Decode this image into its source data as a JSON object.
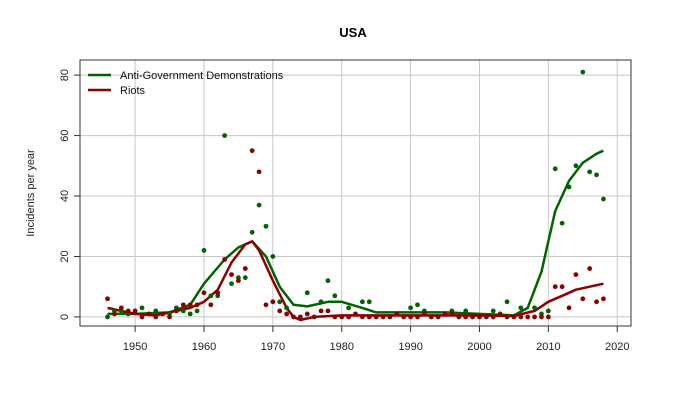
{
  "chart_data": {
    "type": "scatter",
    "title": "USA",
    "xlabel": "",
    "ylabel": "Incidents per year",
    "xlim": [
      1942,
      2022
    ],
    "ylim": [
      -3,
      85
    ],
    "x_ticks": [
      1950,
      1960,
      1970,
      1980,
      1990,
      2000,
      2010,
      2020
    ],
    "y_ticks": [
      0,
      20,
      40,
      60,
      80
    ],
    "grid": true,
    "legend_position": "top-left",
    "series": [
      {
        "name": "Anti-Government Demonstrations",
        "color": "#006400",
        "points": [
          [
            1946,
            0
          ],
          [
            1947,
            2
          ],
          [
            1948,
            2
          ],
          [
            1949,
            1
          ],
          [
            1951,
            3
          ],
          [
            1953,
            2
          ],
          [
            1955,
            1
          ],
          [
            1956,
            3
          ],
          [
            1957,
            2
          ],
          [
            1958,
            1
          ],
          [
            1959,
            2
          ],
          [
            1960,
            22
          ],
          [
            1961,
            7
          ],
          [
            1962,
            7
          ],
          [
            1963,
            60
          ],
          [
            1964,
            11
          ],
          [
            1965,
            13
          ],
          [
            1966,
            13
          ],
          [
            1967,
            28
          ],
          [
            1968,
            37
          ],
          [
            1969,
            30
          ],
          [
            1970,
            20
          ],
          [
            1971,
            5
          ],
          [
            1972,
            3
          ],
          [
            1975,
            8
          ],
          [
            1977,
            5
          ],
          [
            1978,
            12
          ],
          [
            1979,
            7
          ],
          [
            1981,
            3
          ],
          [
            1983,
            5
          ],
          [
            1984,
            5
          ],
          [
            1990,
            3
          ],
          [
            1991,
            4
          ],
          [
            1992,
            2
          ],
          [
            1996,
            2
          ],
          [
            1998,
            2
          ],
          [
            2002,
            2
          ],
          [
            2004,
            5
          ],
          [
            2006,
            3
          ],
          [
            2008,
            3
          ],
          [
            2009,
            1
          ],
          [
            2010,
            2
          ],
          [
            2011,
            49
          ],
          [
            2012,
            31
          ],
          [
            2013,
            43
          ],
          [
            2014,
            50
          ],
          [
            2015,
            81
          ],
          [
            2016,
            48
          ],
          [
            2017,
            47
          ],
          [
            2018,
            39
          ]
        ],
        "trend": [
          [
            1946,
            1
          ],
          [
            1950,
            1
          ],
          [
            1955,
            1.5
          ],
          [
            1958,
            4
          ],
          [
            1960,
            11
          ],
          [
            1963,
            19
          ],
          [
            1965,
            23
          ],
          [
            1967,
            25
          ],
          [
            1969,
            20
          ],
          [
            1971,
            10
          ],
          [
            1973,
            4
          ],
          [
            1975,
            3.5
          ],
          [
            1978,
            5
          ],
          [
            1980,
            5
          ],
          [
            1983,
            3
          ],
          [
            1985,
            1.5
          ],
          [
            1990,
            1.5
          ],
          [
            1995,
            1.5
          ],
          [
            2000,
            1
          ],
          [
            2005,
            0.5
          ],
          [
            2007,
            3
          ],
          [
            2009,
            15
          ],
          [
            2011,
            35
          ],
          [
            2013,
            45
          ],
          [
            2015,
            51
          ],
          [
            2017,
            54
          ],
          [
            2018,
            55
          ]
        ]
      },
      {
        "name": "Riots",
        "color": "#8b0000",
        "points": [
          [
            1946,
            6
          ],
          [
            1947,
            1
          ],
          [
            1948,
            3
          ],
          [
            1949,
            2
          ],
          [
            1950,
            2
          ],
          [
            1951,
            0
          ],
          [
            1952,
            1
          ],
          [
            1953,
            0
          ],
          [
            1954,
            1
          ],
          [
            1955,
            0
          ],
          [
            1956,
            2
          ],
          [
            1957,
            4
          ],
          [
            1958,
            4
          ],
          [
            1959,
            4
          ],
          [
            1960,
            8
          ],
          [
            1961,
            4
          ],
          [
            1962,
            8
          ],
          [
            1963,
            19
          ],
          [
            1964,
            14
          ],
          [
            1965,
            12
          ],
          [
            1966,
            16
          ],
          [
            1967,
            55
          ],
          [
            1968,
            48
          ],
          [
            1969,
            4
          ],
          [
            1970,
            5
          ],
          [
            1971,
            2
          ],
          [
            1972,
            1
          ],
          [
            1973,
            0
          ],
          [
            1974,
            0
          ],
          [
            1975,
            1
          ],
          [
            1976,
            0
          ],
          [
            1977,
            2
          ],
          [
            1978,
            2
          ],
          [
            1979,
            0
          ],
          [
            1980,
            0
          ],
          [
            1981,
            0
          ],
          [
            1982,
            1
          ],
          [
            1983,
            0
          ],
          [
            1984,
            0
          ],
          [
            1985,
            0
          ],
          [
            1986,
            0
          ],
          [
            1987,
            0
          ],
          [
            1988,
            1
          ],
          [
            1989,
            0
          ],
          [
            1990,
            0
          ],
          [
            1991,
            0
          ],
          [
            1992,
            1
          ],
          [
            1993,
            0
          ],
          [
            1994,
            0
          ],
          [
            1995,
            1
          ],
          [
            1996,
            1
          ],
          [
            1997,
            0
          ],
          [
            1998,
            0
          ],
          [
            1999,
            0
          ],
          [
            2000,
            0
          ],
          [
            2001,
            0
          ],
          [
            2002,
            0
          ],
          [
            2003,
            1
          ],
          [
            2004,
            0
          ],
          [
            2005,
            0
          ],
          [
            2006,
            0
          ],
          [
            2007,
            0
          ],
          [
            2008,
            0
          ],
          [
            2009,
            0
          ],
          [
            2010,
            0
          ],
          [
            2011,
            10
          ],
          [
            2012,
            10
          ],
          [
            2013,
            3
          ],
          [
            2014,
            14
          ],
          [
            2015,
            6
          ],
          [
            2016,
            16
          ],
          [
            2017,
            5
          ],
          [
            2018,
            6
          ]
        ],
        "trend": [
          [
            1946,
            3
          ],
          [
            1948,
            2
          ],
          [
            1950,
            1
          ],
          [
            1953,
            0.5
          ],
          [
            1956,
            2
          ],
          [
            1958,
            3
          ],
          [
            1960,
            5
          ],
          [
            1962,
            9
          ],
          [
            1964,
            18
          ],
          [
            1966,
            24
          ],
          [
            1967,
            25
          ],
          [
            1968,
            22
          ],
          [
            1970,
            12
          ],
          [
            1972,
            3
          ],
          [
            1973,
            0
          ],
          [
            1974,
            -1
          ],
          [
            1976,
            0
          ],
          [
            1980,
            0.5
          ],
          [
            1985,
            0.5
          ],
          [
            1990,
            0.5
          ],
          [
            1995,
            0.5
          ],
          [
            2000,
            0.5
          ],
          [
            2005,
            0.3
          ],
          [
            2008,
            2
          ],
          [
            2010,
            5
          ],
          [
            2012,
            7
          ],
          [
            2014,
            9
          ],
          [
            2016,
            10
          ],
          [
            2018,
            11
          ]
        ]
      }
    ]
  }
}
